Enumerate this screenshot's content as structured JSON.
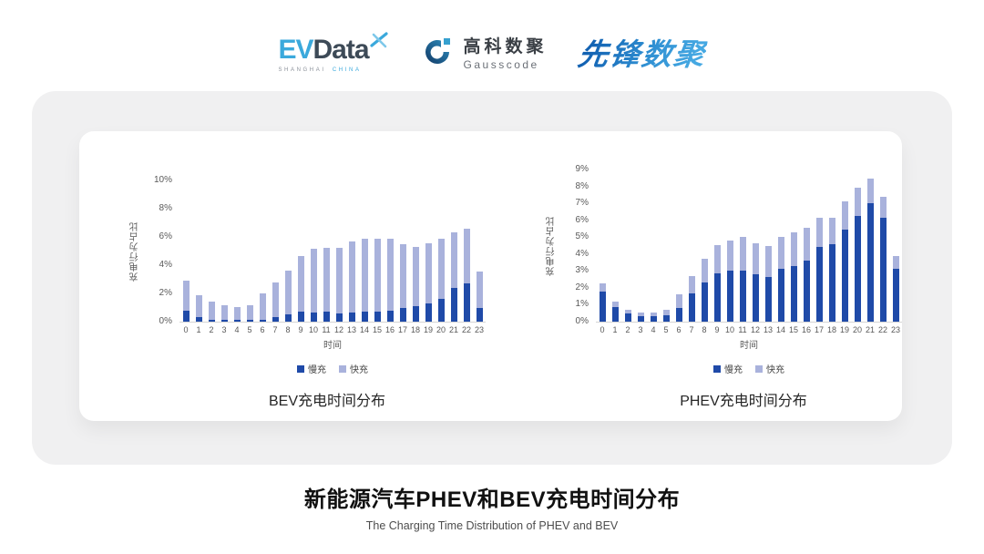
{
  "header": {
    "evdata": {
      "ev": "EV",
      "data": "Data",
      "shanghai": "SHANGHAI",
      "china": "CHINA"
    },
    "gausscode": {
      "cn": "高科数聚",
      "en": "Gausscode"
    },
    "xianfeng": "先锋数聚"
  },
  "colors": {
    "slow_charge": "#1F4AA8",
    "fast_charge": "#A9B2DC",
    "axis_text": "#595959",
    "panel_gray": "#F0F0F1",
    "brand_cyan": "#3BA9DC",
    "brand_navy": "#3D4A57"
  },
  "chart_data": [
    {
      "type": "bar",
      "stacked": true,
      "title": "BEV充电时间分布",
      "xlabel": "时间",
      "ylabel": "充电行为占比",
      "grid": false,
      "legend_position": "bottom",
      "categories": [
        "0",
        "1",
        "2",
        "3",
        "4",
        "5",
        "6",
        "7",
        "8",
        "9",
        "10",
        "11",
        "12",
        "13",
        "14",
        "15",
        "16",
        "17",
        "18",
        "19",
        "20",
        "21",
        "22",
        "23"
      ],
      "ylim": [
        0,
        10
      ],
      "ytick_values": [
        0,
        2,
        4,
        6,
        8,
        10
      ],
      "ytick_labels": [
        "0%",
        "2%",
        "4%",
        "6%",
        "8%",
        "10%"
      ],
      "series": [
        {
          "name": "慢充",
          "color": "#1F4AA8",
          "values": [
            0.75,
            0.35,
            0.15,
            0.1,
            0.1,
            0.1,
            0.15,
            0.35,
            0.5,
            0.7,
            0.65,
            0.7,
            0.6,
            0.65,
            0.7,
            0.7,
            0.8,
            1.0,
            1.1,
            1.3,
            1.6,
            2.4,
            2.7,
            0.95
          ]
        },
        {
          "name": "快充",
          "color": "#A9B2DC",
          "values": [
            2.15,
            1.55,
            1.3,
            1.05,
            0.95,
            1.05,
            1.85,
            2.45,
            3.1,
            3.95,
            4.5,
            4.55,
            4.6,
            5.05,
            5.15,
            5.15,
            5.05,
            4.5,
            4.2,
            4.25,
            4.3,
            3.95,
            3.85,
            2.6
          ]
        }
      ]
    },
    {
      "type": "bar",
      "stacked": true,
      "title": "PHEV充电时间分布",
      "xlabel": "时间",
      "ylabel": "充电行为占比",
      "grid": false,
      "legend_position": "bottom",
      "categories": [
        "0",
        "1",
        "2",
        "3",
        "4",
        "5",
        "6",
        "7",
        "8",
        "9",
        "10",
        "11",
        "12",
        "13",
        "14",
        "15",
        "16",
        "17",
        "18",
        "19",
        "20",
        "21",
        "22",
        "23"
      ],
      "ylim": [
        0,
        9
      ],
      "ytick_values": [
        0,
        1,
        2,
        3,
        4,
        5,
        6,
        7,
        8,
        9
      ],
      "ytick_labels": [
        "0%",
        "1%",
        "2%",
        "3%",
        "4%",
        "5%",
        "6%",
        "7%",
        "8%",
        "9%"
      ],
      "series": [
        {
          "name": "慢充",
          "color": "#1F4AA8",
          "values": [
            1.8,
            0.85,
            0.5,
            0.3,
            0.3,
            0.4,
            0.8,
            1.65,
            2.3,
            2.85,
            3.0,
            3.0,
            2.8,
            2.65,
            3.1,
            3.3,
            3.6,
            4.4,
            4.6,
            5.45,
            6.25,
            7.0,
            6.15,
            3.1
          ]
        },
        {
          "name": "快充",
          "color": "#A9B2DC",
          "values": [
            0.45,
            0.35,
            0.2,
            0.25,
            0.25,
            0.3,
            0.8,
            1.05,
            1.4,
            1.7,
            1.8,
            2.0,
            1.85,
            1.85,
            1.9,
            2.0,
            1.95,
            1.75,
            1.55,
            1.65,
            1.7,
            1.45,
            1.25,
            0.8
          ]
        }
      ]
    }
  ],
  "footer": {
    "title": "新能源汽车PHEV和BEV充电时间分布",
    "subtitle": "The Charging Time Distribution of PHEV and BEV"
  }
}
